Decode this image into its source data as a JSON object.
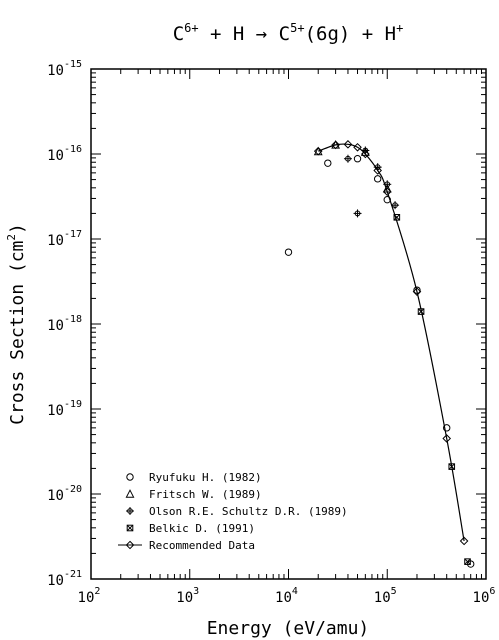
{
  "chart_data": {
    "type": "scatter",
    "title": {
      "parts": [
        {
          "t": "C",
          "sup": false
        },
        {
          "t": "6+",
          "sup": true
        },
        {
          "t": " + H → C",
          "sup": false
        },
        {
          "t": "5+",
          "sup": true
        },
        {
          "t": "(6g) + H",
          "sup": false
        },
        {
          "t": "+",
          "sup": true
        }
      ]
    },
    "xlabel": "Energy (eV/amu)",
    "ylabel": {
      "pre": "Cross Section (cm",
      "sup": "2",
      "post": ")"
    },
    "x_scale": "log",
    "y_scale": "log",
    "xlim": [
      100,
      1000000
    ],
    "ylim": [
      1e-21,
      1e-15
    ],
    "x_ticks": [
      {
        "base": "10",
        "exp": "2",
        "value": 100
      },
      {
        "base": "10",
        "exp": "3",
        "value": 1000
      },
      {
        "base": "10",
        "exp": "4",
        "value": 10000
      },
      {
        "base": "10",
        "exp": "5",
        "value": 100000
      },
      {
        "base": "10",
        "exp": "6",
        "value": 1000000
      }
    ],
    "y_ticks": [
      {
        "base": "10",
        "exp": "-15",
        "value": 1e-15
      },
      {
        "base": "10",
        "exp": "-16",
        "value": 1e-16
      },
      {
        "base": "10",
        "exp": "-17",
        "value": 1e-17
      },
      {
        "base": "10",
        "exp": "-18",
        "value": 1e-18
      },
      {
        "base": "10",
        "exp": "-19",
        "value": 1e-19
      },
      {
        "base": "10",
        "exp": "-20",
        "value": 1e-20
      },
      {
        "base": "10",
        "exp": "-21",
        "value": 1e-21
      }
    ],
    "grid": false,
    "legend_position": "bottom-left",
    "series": [
      {
        "name": "Ryufuku H. (1982)",
        "marker": "circle",
        "points": [
          [
            10000,
            7e-18
          ],
          [
            25000,
            7.8e-17
          ],
          [
            50000,
            8.8e-17
          ],
          [
            80000,
            5.1e-17
          ],
          [
            100000,
            2.9e-17
          ],
          [
            200000,
            2.5e-18
          ],
          [
            400000,
            6e-20
          ],
          [
            700000,
            1.5e-21
          ]
        ]
      },
      {
        "name": "Fritsch W. (1989)",
        "marker": "triangle",
        "points": [
          [
            20000,
            1.07e-16
          ],
          [
            30000,
            1.28e-16
          ],
          [
            60000,
            1.05e-16
          ],
          [
            100000,
            3.9e-17
          ]
        ]
      },
      {
        "name": "Olson R.E. Schultz D.R. (1989)",
        "marker": "plus-circle",
        "points": [
          [
            40000,
            8.8e-17
          ],
          [
            50000,
            2e-17
          ],
          [
            60000,
            1.1e-16
          ],
          [
            80000,
            7e-17
          ],
          [
            100000,
            4.4e-17
          ],
          [
            120000,
            2.5e-17
          ]
        ]
      },
      {
        "name": "Belkic D. (1991)",
        "marker": "x-square",
        "points": [
          [
            125000,
            1.8e-17
          ],
          [
            220000,
            1.4e-18
          ],
          [
            450000,
            2.1e-20
          ],
          [
            650000,
            1.6e-21
          ]
        ]
      },
      {
        "name": "Recommended Data",
        "marker": "diamond",
        "line": true,
        "points": [
          [
            20000,
            1.08e-16
          ],
          [
            30000,
            1.28e-16
          ],
          [
            40000,
            1.3e-16
          ],
          [
            50000,
            1.2e-16
          ],
          [
            60000,
            1e-16
          ],
          [
            80000,
            6.4e-17
          ],
          [
            100000,
            3.6e-17
          ],
          [
            200000,
            2.4e-18
          ],
          [
            400000,
            4.5e-20
          ],
          [
            600000,
            2.8e-21
          ]
        ]
      }
    ]
  }
}
